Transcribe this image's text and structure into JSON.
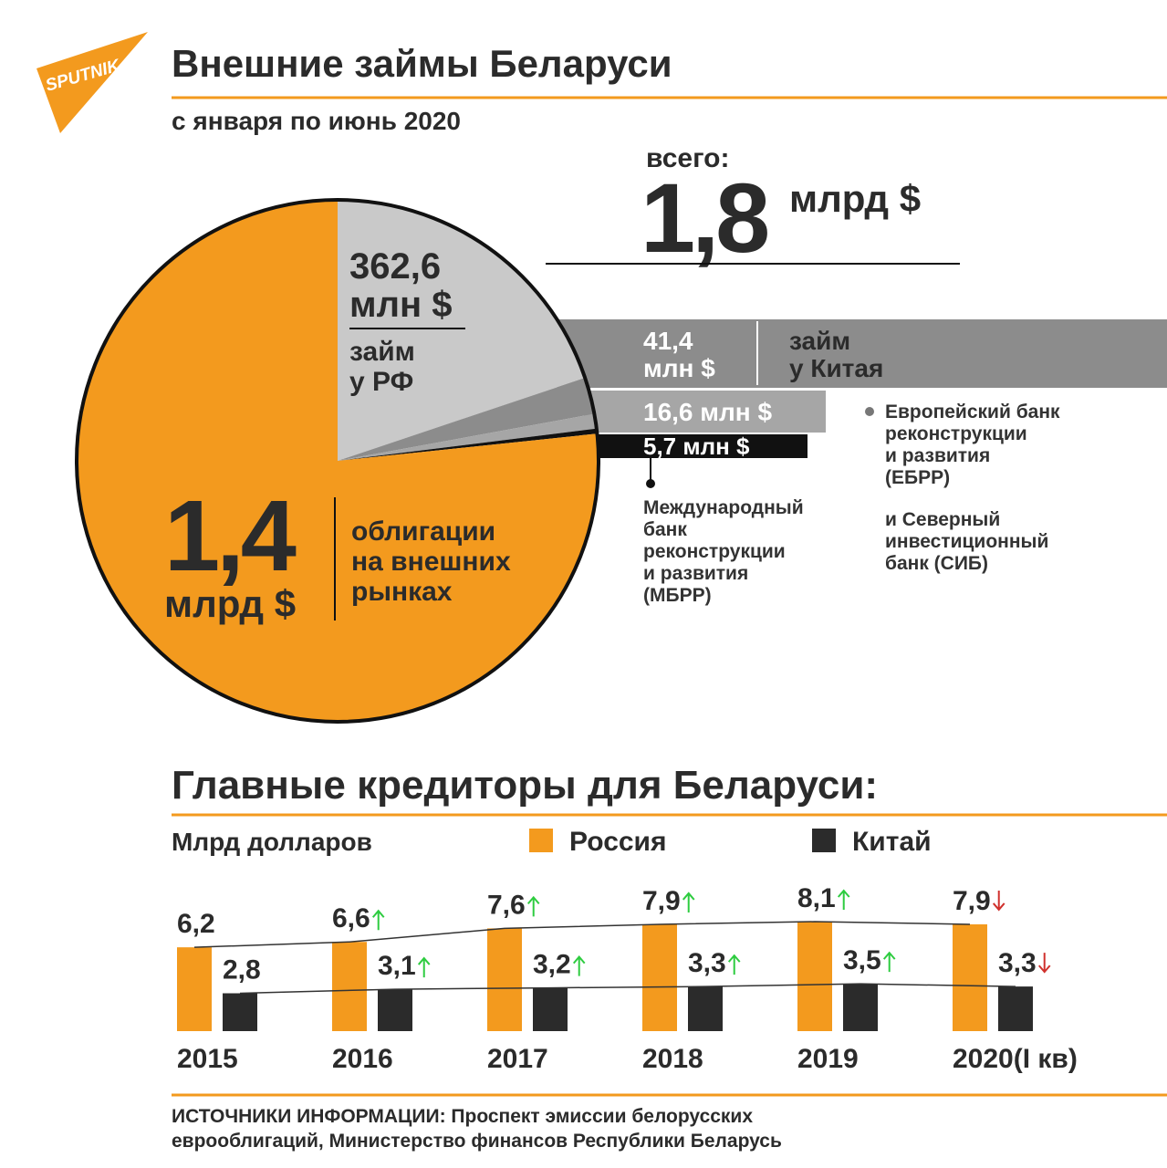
{
  "logo": "SPUTNIK",
  "chart_data": [
    {
      "type": "pie",
      "title": "Внешние займы Беларуси",
      "subtitle": "с января по июнь 2020",
      "total_label": "всего:",
      "total": "1,8",
      "total_unit": "млрд $",
      "categories": [
        [
          "займ",
          "у РФ"
        ],
        [
          "займ",
          "у Китая"
        ],
        [
          "Европейский банк",
          "реконструкции",
          "и развития",
          "(ЕБРР)",
          "и Северный",
          "инвестиционный",
          "банк (СИБ)"
        ],
        [
          "Международный",
          "банк",
          "реконструкции",
          "и развития",
          "(МБРР)"
        ],
        [
          "облигации",
          "на внешних",
          "рынках"
        ]
      ],
      "values": [
        362.6,
        41.4,
        16.6,
        5.7,
        1400
      ],
      "value_labels": [
        [
          "362,6",
          "млн $"
        ],
        [
          "41,4",
          "млн $"
        ],
        [
          "16,6 млн $"
        ],
        [
          "5,7 млн $"
        ],
        [
          "1,4",
          "млрд $"
        ]
      ],
      "colors": [
        "#c9c9c9",
        "#8c8c8c",
        "#a6a6a6",
        "#111111",
        "#f39a1e"
      ]
    },
    {
      "type": "bar",
      "title": "Главные кредиторы для Беларуси:",
      "ylabel": "Млрд долларов",
      "categories": [
        "2015",
        "2016",
        "2017",
        "2018",
        "2019",
        "2020(I кв)"
      ],
      "series": [
        {
          "name": "Россия",
          "color": "#f39a1e",
          "values": [
            6.2,
            6.6,
            7.6,
            7.9,
            8.1,
            7.9
          ],
          "value_labels": [
            "6,2",
            "6,6",
            "7,6",
            "7,9",
            "8,1",
            "7,9"
          ]
        },
        {
          "name": "Китай",
          "color": "#2b2b2b",
          "values": [
            2.8,
            3.1,
            3.2,
            3.3,
            3.5,
            3.3
          ],
          "value_labels": [
            "2,8",
            "3,1",
            "3,2",
            "3,3",
            "3,5",
            "3,3"
          ]
        }
      ]
    }
  ],
  "source": [
    "ИСТОЧНИКИ ИНФОРМАЦИИ: Проспект эмиссии белорусских",
    "еврооблигаций, Министерство финансов Республики Беларусь"
  ]
}
